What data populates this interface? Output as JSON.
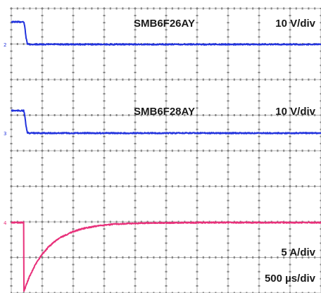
{
  "chart_data": {
    "type": "line",
    "title": "",
    "xlabel": "",
    "ylabel": "",
    "grid": true,
    "timebase_label": "500 µs/div",
    "x_range_us": [
      -200,
      4800
    ],
    "colors": {
      "voltage": "#2233dd",
      "current": "#e8307a",
      "grid": "#b0b0b0"
    },
    "series": [
      {
        "name": "SMB6F26AY",
        "scale_label": "10 V/div",
        "marker": "2",
        "x_us": [
          -200,
          0,
          10,
          25,
          40,
          60,
          100,
          4800
        ],
        "y_div": [
          1.1,
          1.1,
          1.0,
          0.7,
          0.3,
          0.02,
          0,
          0
        ]
      },
      {
        "name": "SMB6F28AY",
        "scale_label": "10 V/div",
        "marker": "3",
        "x_us": [
          -200,
          0,
          10,
          25,
          40,
          60,
          100,
          4800
        ],
        "y_div": [
          1.1,
          1.1,
          1.0,
          0.7,
          0.3,
          0.02,
          0,
          0
        ]
      },
      {
        "name": "",
        "scale_label": "5 A/div",
        "marker": "4",
        "x_us": [
          -200,
          0,
          2,
          50,
          100,
          200,
          300,
          400,
          500,
          600,
          800,
          1000,
          1250,
          1500,
          2000,
          2500,
          3000,
          4800
        ],
        "y_div": [
          0,
          0,
          -3.4,
          -2.98,
          -2.6,
          -2.0,
          -1.55,
          -1.2,
          -0.93,
          -0.72,
          -0.44,
          -0.26,
          -0.14,
          -0.07,
          -0.02,
          -0.01,
          0,
          0
        ]
      }
    ]
  }
}
